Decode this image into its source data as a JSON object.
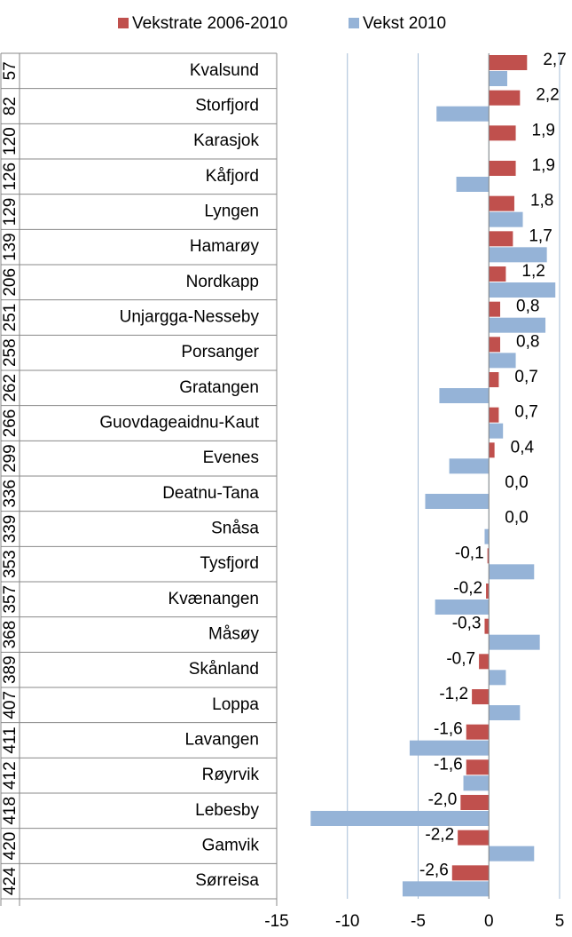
{
  "chart_data": {
    "type": "bar",
    "orientation": "horizontal",
    "categories": [
      "Kvalsund",
      "Storfjord",
      "Karasjok",
      "Kåfjord",
      "Lyngen",
      "Hamarøy",
      "Nordkapp",
      "Unjargga-Nesseby",
      "Porsanger",
      "Gratangen",
      "Guovdageaidnu-Kaut",
      "Evenes",
      "Deatnu-Tana",
      "Snåsa",
      "Tysfjord",
      "Kvænangen",
      "Måsøy",
      "Skånland",
      "Loppa",
      "Lavangen",
      "Røyrvik",
      "Lebesby",
      "Gamvik",
      "Sørreisa"
    ],
    "ranks": [
      57,
      82,
      120,
      126,
      129,
      139,
      206,
      251,
      258,
      262,
      266,
      299,
      336,
      339,
      353,
      357,
      368,
      389,
      407,
      411,
      412,
      418,
      420,
      424
    ],
    "series": [
      {
        "name": "Vekstrate 2006-2010",
        "color": "#c0504d",
        "values": [
          2.7,
          2.2,
          1.9,
          1.9,
          1.8,
          1.7,
          1.2,
          0.8,
          0.8,
          0.7,
          0.7,
          0.4,
          0.0,
          0.0,
          -0.1,
          -0.2,
          -0.3,
          -0.7,
          -1.2,
          -1.6,
          -1.6,
          -2.0,
          -2.2,
          -2.6
        ],
        "value_labels": [
          "2,7",
          "2,2",
          "1,9",
          "1,9",
          "1,8",
          "1,7",
          "1,2",
          "0,8",
          "0,8",
          "0,7",
          "0,7",
          "0,4",
          "0,0",
          "0,0",
          "-0,1",
          "-0,2",
          "-0,3",
          "-0,7",
          "-1,2",
          "-1,6",
          "-1,6",
          "-2,0",
          "-2,2",
          "-2,6"
        ]
      },
      {
        "name": "Vekst 2010",
        "color": "#95b3d7",
        "values": [
          1.3,
          -3.7,
          0,
          -2.3,
          2.4,
          4.1,
          4.7,
          4.0,
          1.9,
          -3.5,
          1.0,
          -2.8,
          -4.5,
          -0.3,
          3.2,
          -3.8,
          3.6,
          1.2,
          2.2,
          -5.6,
          -1.8,
          -12.6,
          3.2,
          -6.1
        ]
      }
    ],
    "xlim": [
      -15,
      5
    ],
    "xticks": [
      -15,
      -10,
      -5,
      0,
      5
    ],
    "grid": true,
    "legend": "top"
  }
}
